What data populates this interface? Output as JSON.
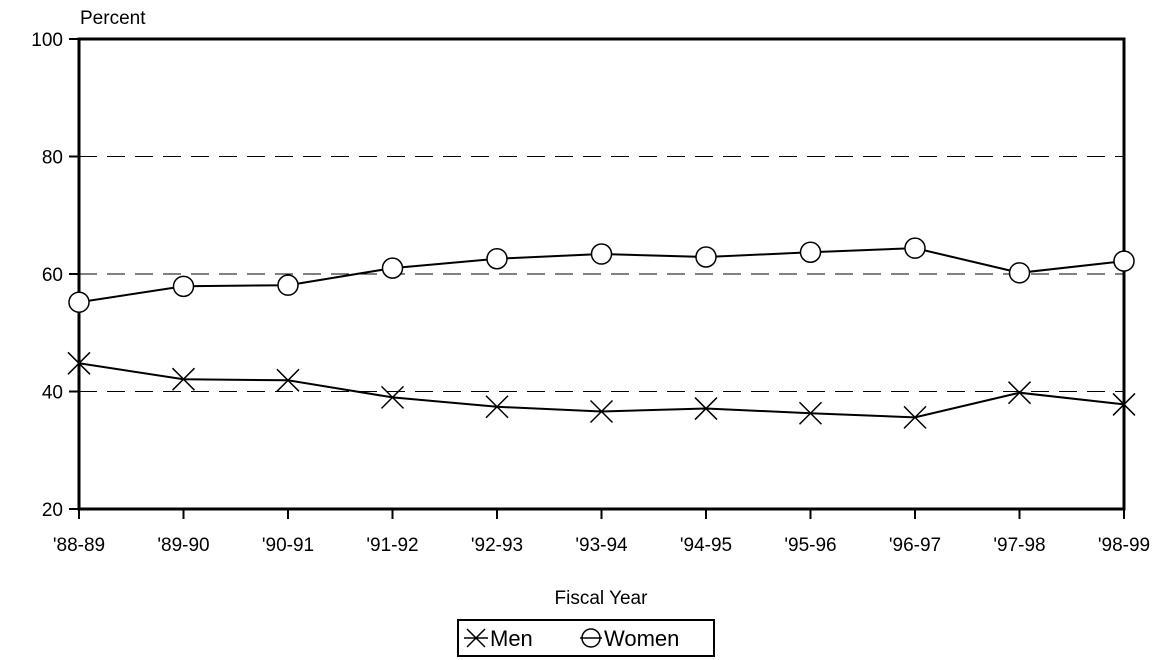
{
  "chart_data": {
    "type": "line",
    "title": "",
    "xlabel": "Fiscal Year",
    "ylabel": "Percent",
    "ylim": [
      20,
      100
    ],
    "yticks": [
      20,
      40,
      60,
      80,
      100
    ],
    "grid": "horizontal-dashed",
    "legend_position": "bottom-center",
    "categories": [
      "'88-89",
      "'89-90",
      "'90-91",
      "'91-92",
      "'92-93",
      "'93-94",
      "'94-95",
      "'95-96",
      "'96-97",
      "'97-98",
      "'98-99"
    ],
    "series": [
      {
        "name": "Men",
        "marker": "x",
        "color": "#000000",
        "values": [
          44.8,
          42.1,
          41.9,
          39.0,
          37.4,
          36.6,
          37.1,
          36.3,
          35.6,
          39.8,
          37.8
        ]
      },
      {
        "name": "Women",
        "marker": "circle",
        "color": "#000000",
        "values": [
          55.2,
          57.9,
          58.1,
          61.0,
          62.6,
          63.4,
          62.9,
          63.7,
          64.4,
          60.2,
          62.2
        ]
      }
    ]
  },
  "legend": {
    "men_label": "Men",
    "women_label": "Women"
  }
}
